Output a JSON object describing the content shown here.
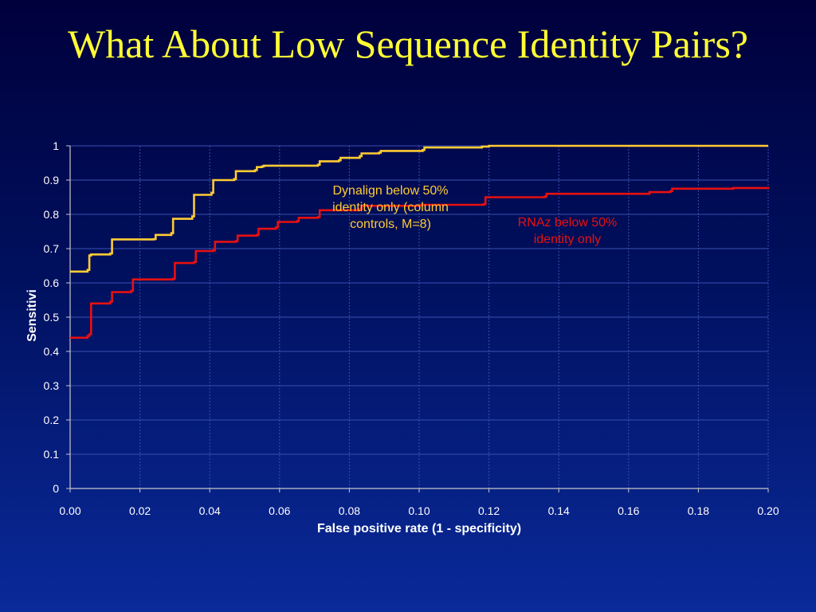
{
  "slide": {
    "title": "What About Low Sequence Identity Pairs?"
  },
  "colors": {
    "dynalign": "#ffcc33",
    "rnaz": "#e81010",
    "grid": "#3a4fb0",
    "axis": "#c8c8c8",
    "title": "#ffff33"
  },
  "chart_data": {
    "type": "line",
    "title": "",
    "xlabel": "False positive rate (1 - specificity)",
    "ylabel": "Sensitivi",
    "xlim": [
      0,
      0.2
    ],
    "ylim": [
      0,
      1
    ],
    "grid": true,
    "x_ticks": [
      "0.00",
      "0.02",
      "0.04",
      "0.06",
      "0.08",
      "0.10",
      "0.12",
      "0.14",
      "0.16",
      "0.18",
      "0.20"
    ],
    "y_ticks": [
      "0",
      "0.1",
      "0.2",
      "0.3",
      "0.4",
      "0.5",
      "0.6",
      "0.7",
      "0.8",
      "0.9",
      "1"
    ],
    "annotations": [
      {
        "series": "dynalign",
        "lines": [
          "Dynalign below 50%",
          "identity only (column",
          "controls, M=8)"
        ]
      },
      {
        "series": "rnaz",
        "lines": [
          "RNAz below 50%",
          "identity only"
        ]
      }
    ],
    "series": [
      {
        "key": "dynalign",
        "x": [
          0,
          0.005,
          0.0055,
          0.006,
          0.0115,
          0.012,
          0.024,
          0.0245,
          0.029,
          0.0295,
          0.035,
          0.0355,
          0.0405,
          0.041,
          0.047,
          0.0475,
          0.053,
          0.0535,
          0.055,
          0.0555,
          0.071,
          0.0715,
          0.077,
          0.0775,
          0.083,
          0.0835,
          0.0885,
          0.089,
          0.101,
          0.1015,
          0.118,
          0.12,
          0.2
        ],
        "y": [
          0.633,
          0.638,
          0.68,
          0.683,
          0.686,
          0.727,
          0.728,
          0.74,
          0.745,
          0.787,
          0.794,
          0.857,
          0.863,
          0.9,
          0.903,
          0.926,
          0.929,
          0.938,
          0.94,
          0.942,
          0.945,
          0.955,
          0.958,
          0.965,
          0.97,
          0.978,
          0.98,
          0.985,
          0.988,
          0.995,
          0.998,
          1.0,
          1.0
        ]
      },
      {
        "key": "rnaz",
        "x": [
          0,
          0.005,
          0.0055,
          0.006,
          0.006,
          0.0115,
          0.012,
          0.0175,
          0.018,
          0.0295,
          0.03,
          0.0355,
          0.036,
          0.041,
          0.0415,
          0.0475,
          0.048,
          0.0535,
          0.054,
          0.059,
          0.0595,
          0.065,
          0.0655,
          0.071,
          0.0715,
          0.083,
          0.0835,
          0.1,
          0.1005,
          0.1185,
          0.119,
          0.136,
          0.1365,
          0.16,
          0.166,
          0.172,
          0.1725,
          0.19,
          0.2
        ],
        "y": [
          0.44,
          0.445,
          0.45,
          0.455,
          0.54,
          0.545,
          0.573,
          0.577,
          0.61,
          0.612,
          0.658,
          0.661,
          0.693,
          0.695,
          0.72,
          0.722,
          0.738,
          0.74,
          0.758,
          0.762,
          0.778,
          0.78,
          0.79,
          0.792,
          0.812,
          0.815,
          0.825,
          0.826,
          0.828,
          0.83,
          0.85,
          0.852,
          0.86,
          0.86,
          0.865,
          0.868,
          0.875,
          0.877,
          0.88
        ]
      }
    ]
  }
}
